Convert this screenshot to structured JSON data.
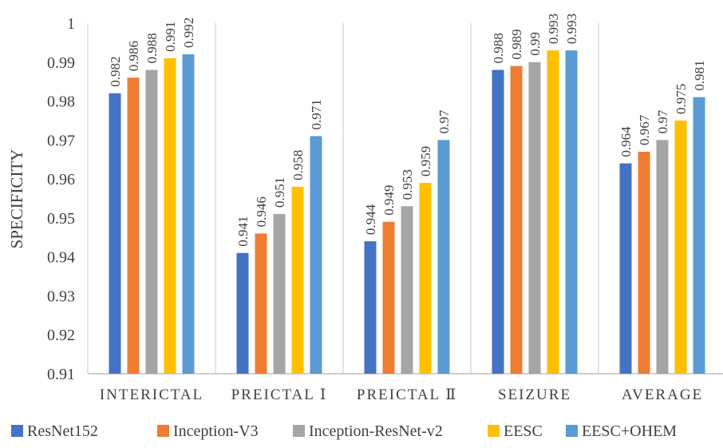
{
  "chart_data": {
    "type": "bar",
    "title": "",
    "xlabel": "",
    "ylabel": "SPECIFICITY",
    "ylim": [
      0.91,
      1
    ],
    "yticks": [
      "0.91",
      "0.92",
      "0.93",
      "0.94",
      "0.95",
      "0.96",
      "0.97",
      "0.98",
      "0.99",
      "1"
    ],
    "grid": "vertical category separators",
    "legend_position": "bottom",
    "categories": [
      "INTERICTAL",
      "PREICTAL Ⅰ",
      "PREICTAL Ⅱ",
      "SEIZURE",
      "AVERAGE"
    ],
    "series": [
      {
        "name": "ResNet152",
        "color": "#4472C4",
        "values": [
          0.982,
          0.941,
          0.944,
          0.988,
          0.964
        ],
        "labels": [
          "0.982",
          "0.941",
          "0.944",
          "0.988",
          "0.964"
        ]
      },
      {
        "name": "Inception-V3",
        "color": "#ED7D31",
        "values": [
          0.986,
          0.946,
          0.949,
          0.989,
          0.967
        ],
        "labels": [
          "0.986",
          "0.946",
          "0.949",
          "0.989",
          "0.967"
        ]
      },
      {
        "name": "Inception-ResNet-v2",
        "color": "#A5A5A5",
        "values": [
          0.988,
          0.951,
          0.953,
          0.99,
          0.97
        ],
        "labels": [
          "0.988",
          "0.951",
          "0.953",
          "0.99",
          "0.97"
        ]
      },
      {
        "name": "EESC",
        "color": "#FFC000",
        "values": [
          0.991,
          0.958,
          0.959,
          0.993,
          0.975
        ],
        "labels": [
          "0.991",
          "0.958",
          "0.959",
          "0.993",
          "0.975"
        ]
      },
      {
        "name": "EESC+OHEM",
        "color": "#5B9BD5",
        "values": [
          0.992,
          0.971,
          0.97,
          0.993,
          0.981
        ],
        "labels": [
          "0.992",
          "0.971",
          "0.97",
          "0.993",
          "0.981"
        ]
      }
    ]
  }
}
